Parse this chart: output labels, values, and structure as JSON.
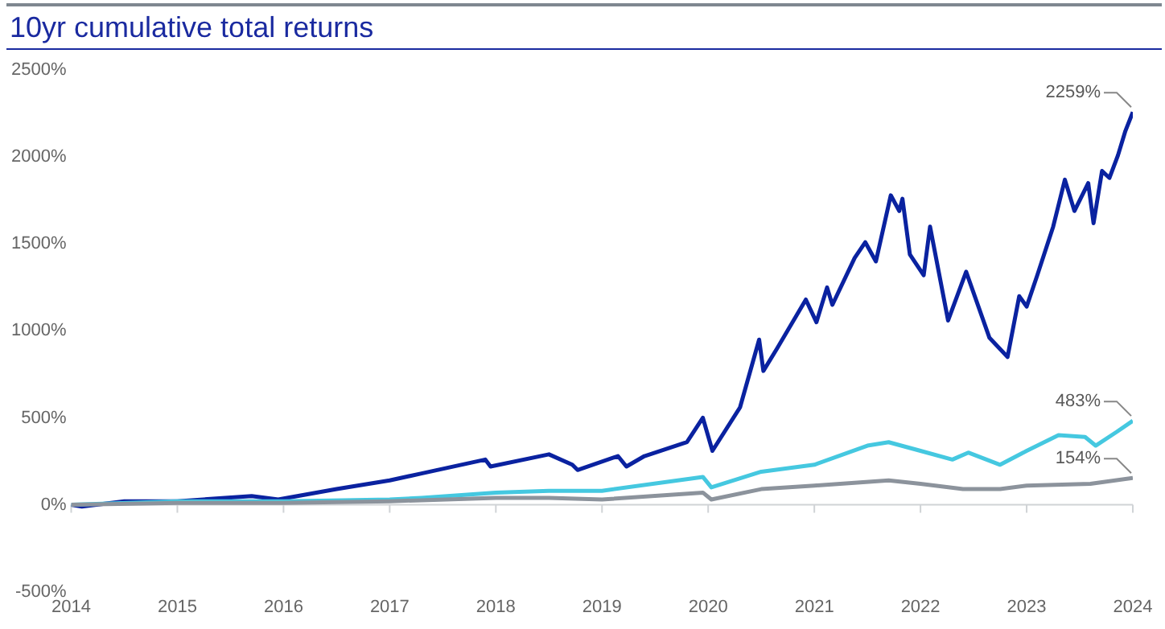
{
  "chart_data": {
    "type": "line",
    "title": "10yr cumulative total returns",
    "xlim": [
      2014,
      2024
    ],
    "xticks": [
      2014,
      2015,
      2016,
      2017,
      2018,
      2019,
      2020,
      2021,
      2022,
      2023,
      2024
    ],
    "ylim": [
      -500,
      2500
    ],
    "yticks": [
      {
        "value": -500,
        "label": "-500%"
      },
      {
        "value": 0,
        "label": "0%"
      },
      {
        "value": 500,
        "label": "500%"
      },
      {
        "value": 1000,
        "label": "1000%"
      },
      {
        "value": 1500,
        "label": "1500%"
      },
      {
        "value": 2000,
        "label": "2000%"
      },
      {
        "value": 2500,
        "label": "2500%"
      }
    ],
    "grid": false,
    "legend": false,
    "marker": "none",
    "line_style": "solid",
    "ref_lines": [
      {
        "axis": "y",
        "value": 0,
        "color": "#d0d3d6"
      }
    ],
    "series": [
      {
        "color": "#8c939c",
        "x": [
          2014,
          2015,
          2016,
          2017,
          2018,
          2018.5,
          2019,
          2019.95,
          2020.03,
          2020.5,
          2021,
          2021.7,
          2022,
          2022.4,
          2022.75,
          2023,
          2023.6,
          2024
        ],
        "values": [
          0,
          10,
          10,
          20,
          40,
          40,
          30,
          70,
          30,
          90,
          110,
          140,
          120,
          90,
          90,
          110,
          120,
          154
        ],
        "value_labels": [
          null,
          null,
          null,
          null,
          null,
          null,
          null,
          null,
          null,
          null,
          null,
          null,
          null,
          null,
          null,
          null,
          null,
          "154%"
        ]
      },
      {
        "color": "#45c8e0",
        "x": [
          2014,
          2015,
          2016,
          2017,
          2017.3,
          2018,
          2018.5,
          2019,
          2019.95,
          2020.03,
          2020.5,
          2021,
          2021.5,
          2021.7,
          2022,
          2022.3,
          2022.45,
          2022.75,
          2023,
          2023.3,
          2023.55,
          2023.65,
          2023.85,
          2024
        ],
        "values": [
          0,
          20,
          20,
          30,
          40,
          70,
          80,
          80,
          160,
          100,
          190,
          230,
          340,
          360,
          310,
          260,
          300,
          230,
          310,
          400,
          390,
          340,
          420,
          483
        ],
        "value_labels": [
          null,
          null,
          null,
          null,
          null,
          null,
          null,
          null,
          null,
          null,
          null,
          null,
          null,
          null,
          null,
          null,
          null,
          null,
          null,
          null,
          null,
          null,
          null,
          "483%"
        ]
      },
      {
        "color": "#0a22a0",
        "x": [
          2014,
          2014.1,
          2014.5,
          2015,
          2015.7,
          2015.95,
          2016.5,
          2017,
          2017.3,
          2017.9,
          2017.95,
          2018.5,
          2018.72,
          2018.77,
          2019.15,
          2019.23,
          2019.4,
          2019.8,
          2019.95,
          2020.04,
          2020.3,
          2020.48,
          2020.52,
          2020.65,
          2020.92,
          2021.02,
          2021.12,
          2021.17,
          2021.38,
          2021.48,
          2021.58,
          2021.72,
          2021.8,
          2021.83,
          2021.9,
          2022.03,
          2022.09,
          2022.26,
          2022.43,
          2022.65,
          2022.82,
          2022.93,
          2023,
          2023.1,
          2023.25,
          2023.36,
          2023.45,
          2023.58,
          2023.63,
          2023.71,
          2023.78,
          2023.86,
          2023.93,
          2024
        ],
        "values": [
          0,
          -10,
          20,
          20,
          50,
          30,
          90,
          140,
          180,
          260,
          220,
          290,
          230,
          200,
          280,
          220,
          280,
          360,
          500,
          310,
          560,
          950,
          770,
          900,
          1180,
          1050,
          1250,
          1150,
          1420,
          1510,
          1400,
          1780,
          1690,
          1760,
          1440,
          1320,
          1600,
          1060,
          1340,
          960,
          850,
          1200,
          1140,
          1320,
          1600,
          1870,
          1690,
          1850,
          1620,
          1920,
          1880,
          2010,
          2150,
          2259
        ],
        "value_labels": [
          null,
          null,
          null,
          null,
          null,
          null,
          null,
          null,
          null,
          null,
          null,
          null,
          null,
          null,
          null,
          null,
          null,
          null,
          null,
          null,
          null,
          null,
          null,
          null,
          null,
          null,
          null,
          null,
          null,
          null,
          null,
          null,
          null,
          null,
          null,
          null,
          null,
          null,
          null,
          null,
          null,
          null,
          null,
          null,
          null,
          null,
          null,
          null,
          null,
          null,
          null,
          null,
          null,
          "2259%"
        ]
      }
    ]
  }
}
